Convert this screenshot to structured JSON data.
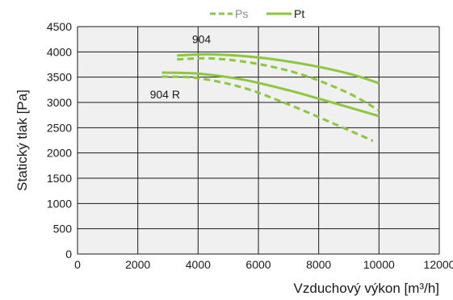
{
  "chart_data": {
    "type": "line",
    "xlabel": "Vzduchový výkon [m³/h]",
    "ylabel": "Statický tlak [Pa]",
    "xlim": [
      0,
      12000
    ],
    "ylim": [
      0,
      4500
    ],
    "x_ticks": [
      "0",
      "2000",
      "4000",
      "6000",
      "8000",
      "10000",
      "12000"
    ],
    "y_ticks": [
      "0",
      "500",
      "1000",
      "1500",
      "2000",
      "2500",
      "3000",
      "3500",
      "4000",
      "4500"
    ],
    "grid": true,
    "legend": {
      "position": "top-center",
      "entries": [
        {
          "label": "Ps",
          "style": "dashed",
          "color": "#8dc63f",
          "text_color": "#8a8a8a"
        },
        {
          "label": "Pt",
          "style": "solid",
          "color": "#8dc63f",
          "text_color": "#1a1a1a"
        }
      ]
    },
    "annotations": [
      {
        "text": "904",
        "x": 3800,
        "y": 4170
      },
      {
        "text": "904 R",
        "x": 2400,
        "y": 3080
      }
    ],
    "series": [
      {
        "group": "904",
        "kind": "Pt",
        "style": "solid",
        "color": "#8dc63f",
        "points": [
          [
            3300,
            3930
          ],
          [
            4500,
            3950
          ],
          [
            6000,
            3890
          ],
          [
            7500,
            3760
          ],
          [
            9000,
            3570
          ],
          [
            10000,
            3380
          ]
        ]
      },
      {
        "group": "904",
        "kind": "Ps",
        "style": "dashed",
        "color": "#8dc63f",
        "points": [
          [
            3300,
            3850
          ],
          [
            4500,
            3870
          ],
          [
            6000,
            3760
          ],
          [
            7500,
            3540
          ],
          [
            9000,
            3180
          ],
          [
            10000,
            2840
          ]
        ]
      },
      {
        "group": "904 R",
        "kind": "Pt",
        "style": "solid",
        "color": "#8dc63f",
        "points": [
          [
            2800,
            3590
          ],
          [
            4000,
            3570
          ],
          [
            5500,
            3450
          ],
          [
            7000,
            3240
          ],
          [
            8500,
            2990
          ],
          [
            10000,
            2730
          ]
        ]
      },
      {
        "group": "904 R",
        "kind": "Ps",
        "style": "dashed",
        "color": "#8dc63f",
        "points": [
          [
            2800,
            3510
          ],
          [
            4000,
            3480
          ],
          [
            5500,
            3290
          ],
          [
            7000,
            2960
          ],
          [
            8500,
            2580
          ],
          [
            9800,
            2240
          ]
        ]
      }
    ]
  }
}
